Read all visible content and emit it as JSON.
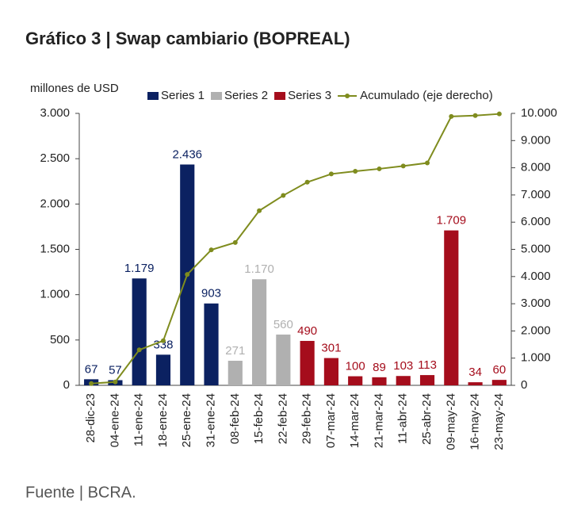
{
  "chart_data": {
    "type": "bar",
    "title": "Gráfico 3 | Swap cambiario (BOPREAL)",
    "y_label": "millones de USD",
    "source": "Fuente | BCRA.",
    "categories": [
      "28-dic-23",
      "04-ene-24",
      "11-ene-24",
      "18-ene-24",
      "25-ene-24",
      "31-ene-24",
      "08-feb-24",
      "15-feb-24",
      "22-feb-24",
      "29-feb-24",
      "07-mar-24",
      "14-mar-24",
      "21-mar-24",
      "11-abr-24",
      "25-abr-24",
      "09-may-24",
      "16-may-24",
      "23-may-24"
    ],
    "ylim": [
      0,
      3000
    ],
    "yticks": [
      0,
      500,
      {
        "value": 1000,
        "label": "1.000"
      },
      {
        "value": 1500,
        "label": "1.500"
      },
      {
        "value": 2000,
        "label": "2.000"
      },
      {
        "value": 2500,
        "label": "2.500"
      },
      {
        "value": 3000,
        "label": "3.000"
      }
    ],
    "y2lim": [
      0,
      10000
    ],
    "y2ticks": [
      0,
      {
        "value": 1000,
        "label": "1.000"
      },
      {
        "value": 2000,
        "label": "2.000"
      },
      {
        "value": 3000,
        "label": "3.000"
      },
      {
        "value": 4000,
        "label": "4.000"
      },
      {
        "value": 5000,
        "label": "5.000"
      },
      {
        "value": 6000,
        "label": "6.000"
      },
      {
        "value": 7000,
        "label": "7.000"
      },
      {
        "value": 8000,
        "label": "8.000"
      },
      {
        "value": 9000,
        "label": "9.000"
      },
      {
        "value": 10000,
        "label": "10.000"
      }
    ],
    "series": [
      {
        "name": "Series 1",
        "color": "#0b2161",
        "type": "bar",
        "values": [
          67,
          57,
          1179,
          338,
          2436,
          903,
          null,
          null,
          null,
          null,
          null,
          null,
          null,
          null,
          null,
          null,
          null,
          null
        ],
        "value_labels": [
          "67",
          "57",
          "1.179",
          "338",
          "2.436",
          "903",
          null,
          null,
          null,
          null,
          null,
          null,
          null,
          null,
          null,
          null,
          null,
          null
        ]
      },
      {
        "name": "Series 2",
        "color": "#b0b0b0",
        "type": "bar",
        "values": [
          null,
          null,
          null,
          null,
          null,
          null,
          271,
          1170,
          560,
          null,
          null,
          null,
          null,
          null,
          null,
          null,
          null,
          null
        ],
        "value_labels": [
          null,
          null,
          null,
          null,
          null,
          null,
          "271",
          "1.170",
          "560",
          null,
          null,
          null,
          null,
          null,
          null,
          null,
          null,
          null
        ]
      },
      {
        "name": "Series 3",
        "color": "#a50d1c",
        "type": "bar",
        "values": [
          null,
          null,
          null,
          null,
          null,
          null,
          null,
          null,
          null,
          490,
          301,
          100,
          89,
          103,
          113,
          1709,
          34,
          60
        ],
        "value_labels": [
          null,
          null,
          null,
          null,
          null,
          null,
          null,
          null,
          null,
          "490",
          "301",
          "100",
          "89",
          "103",
          "113",
          "1.709",
          "34",
          "60"
        ]
      },
      {
        "name": "Acumulado (eje derecho)",
        "color": "#7f8c1e",
        "type": "line",
        "axis": "y2",
        "values": [
          67,
          124,
          1303,
          1641,
          4077,
          4980,
          5251,
          6421,
          6981,
          7471,
          7772,
          7872,
          7961,
          8064,
          8177,
          9886,
          9920,
          9980
        ]
      }
    ]
  }
}
